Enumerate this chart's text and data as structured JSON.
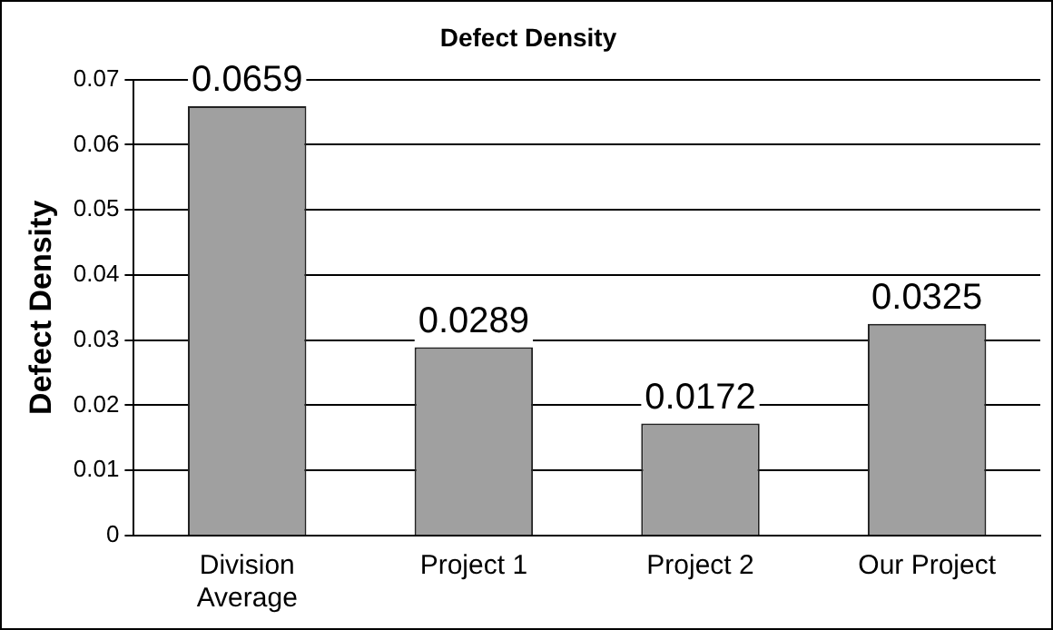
{
  "chart_data": {
    "type": "bar",
    "title": "Defect Density",
    "ylabel": "Defect Density",
    "categories": [
      "Division Average",
      "Project 1",
      "Project 2",
      "Our Project"
    ],
    "values": [
      0.0659,
      0.0289,
      0.0172,
      0.0325
    ],
    "color": "#a0a0a0",
    "ylim": [
      0,
      0.07
    ],
    "yticks": [
      0,
      0.01,
      0.02,
      0.03,
      0.04,
      0.05,
      0.06,
      0.07
    ],
    "grid": "y",
    "legend": false,
    "data_labels": true
  }
}
